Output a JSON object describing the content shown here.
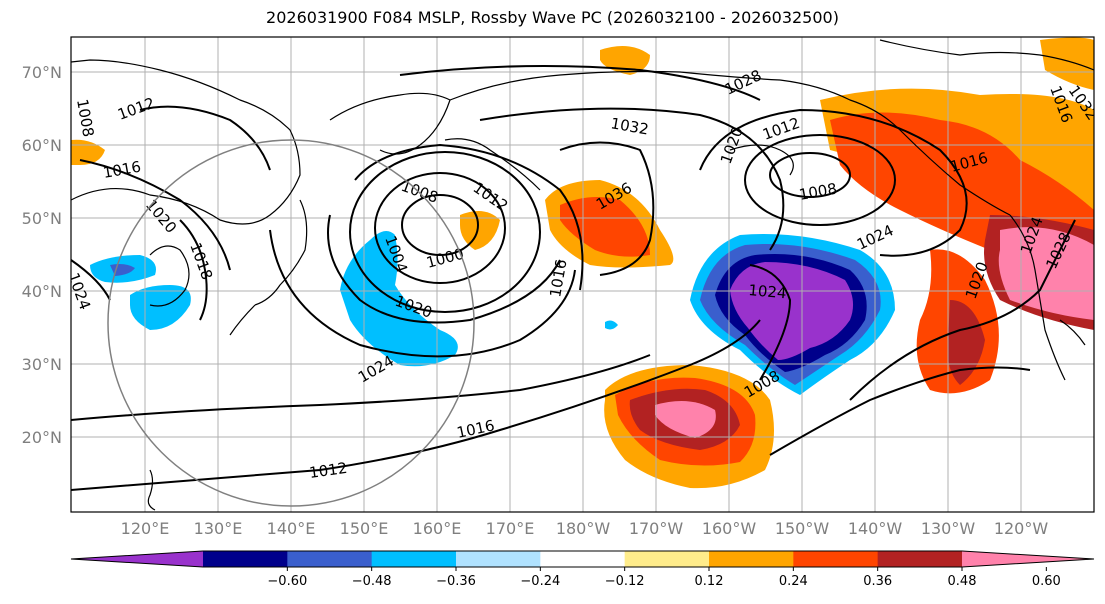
{
  "title": "2026031900 F084 MSLP, Rossby Wave PC (2026032100 - 2026032500)",
  "lat_labels": [
    "70°N",
    "60°N",
    "50°N",
    "40°N",
    "30°N",
    "20°N"
  ],
  "lon_labels": [
    "120°E",
    "130°E",
    "140°E",
    "150°E",
    "160°E",
    "170°E",
    "180°W",
    "170°W",
    "160°W",
    "150°W",
    "140°W",
    "130°W",
    "120°W"
  ],
  "colorbar": {
    "colors": [
      "#9932cc",
      "#00008b",
      "#3a5fcd",
      "#00bfff",
      "#b0e2ff",
      "#ffffff",
      "#ffec8b",
      "#ffa500",
      "#ff4500",
      "#b22222",
      "#ff82ab"
    ],
    "tick_labels": [
      "−0.60",
      "−0.48",
      "−0.36",
      "−0.24",
      "−0.12",
      "0.12",
      "0.24",
      "0.36",
      "0.48",
      "0.60"
    ]
  },
  "contour_labels": [
    "1008",
    "1012",
    "1016",
    "1020",
    "1024",
    "1018",
    "1024",
    "1012",
    "1008",
    "1000",
    "1004",
    "1020",
    "1024",
    "1016",
    "1012",
    "1032",
    "1036",
    "1016",
    "1028",
    "1020",
    "1012",
    "1008",
    "1024",
    "1024",
    "1008",
    "1016",
    "1016",
    "1020",
    "1028",
    "1032"
  ]
}
